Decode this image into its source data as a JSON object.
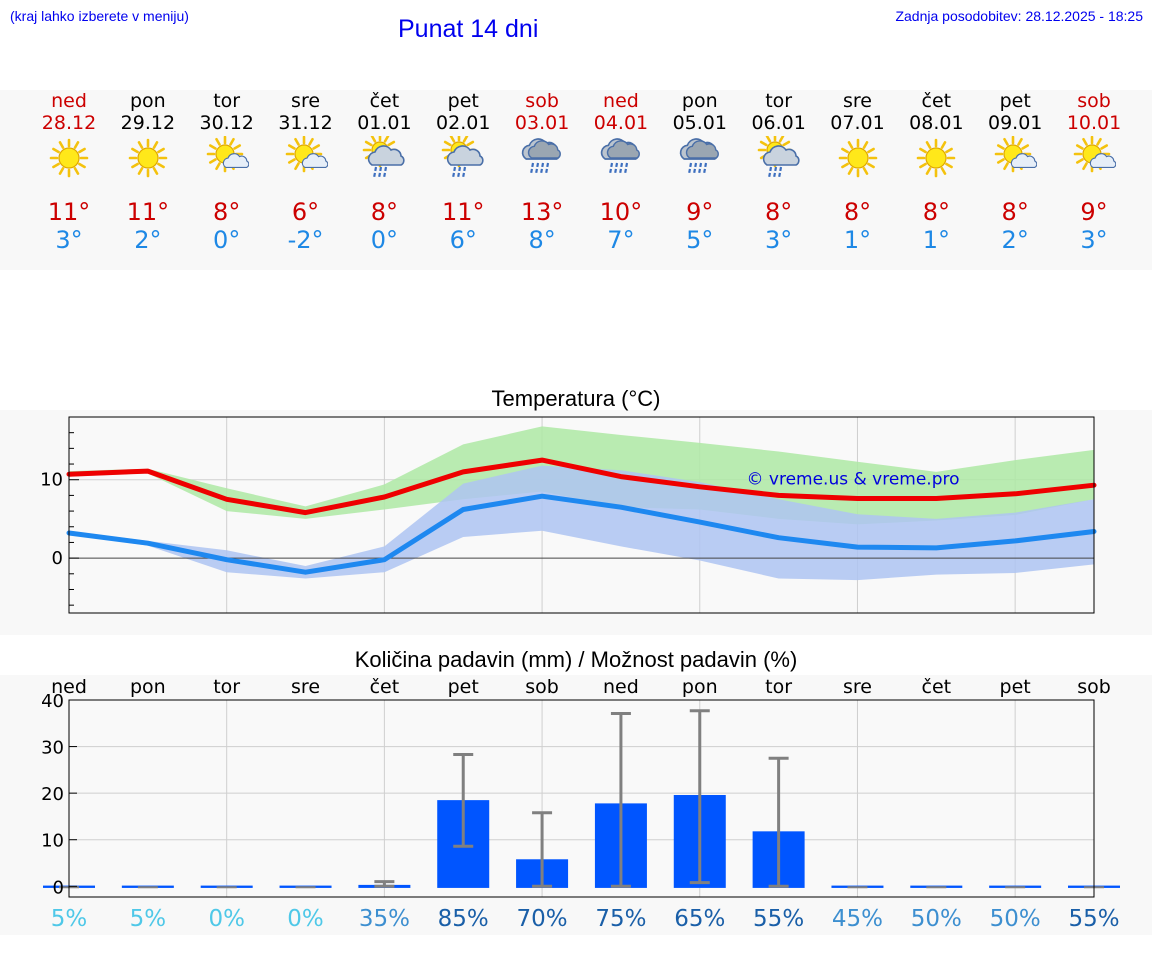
{
  "header": {
    "note": "(kraj lahko izberete v meniju)",
    "title": "Punat 14 dni",
    "updated": "Zadnja posodobitev: 28.12.2025 - 18:25"
  },
  "days": [
    {
      "name": "ned",
      "date": "28.12",
      "icon": "sun-icon",
      "tmax": "11°",
      "tmin": "3°",
      "weekend": true
    },
    {
      "name": "pon",
      "date": "29.12",
      "icon": "sun-icon",
      "tmax": "11°",
      "tmin": "2°",
      "weekend": false
    },
    {
      "name": "tor",
      "date": "30.12",
      "icon": "sun-cloud-icon",
      "tmax": "8°",
      "tmin": "0°",
      "weekend": false
    },
    {
      "name": "sre",
      "date": "31.12",
      "icon": "sun-cloud-icon",
      "tmax": "6°",
      "tmin": "-2°",
      "weekend": false
    },
    {
      "name": "čet",
      "date": "01.01",
      "icon": "sun-cloud-rain-icon",
      "tmax": "8°",
      "tmin": "0°",
      "weekend": false
    },
    {
      "name": "pet",
      "date": "02.01",
      "icon": "sun-cloud-rain-icon",
      "tmax": "11°",
      "tmin": "6°",
      "weekend": false
    },
    {
      "name": "sob",
      "date": "03.01",
      "icon": "cloud-rain-icon",
      "tmax": "13°",
      "tmin": "8°",
      "weekend": true
    },
    {
      "name": "ned",
      "date": "04.01",
      "icon": "cloud-rain-icon",
      "tmax": "10°",
      "tmin": "7°",
      "weekend": true
    },
    {
      "name": "pon",
      "date": "05.01",
      "icon": "cloud-rain-icon",
      "tmax": "9°",
      "tmin": "5°",
      "weekend": false
    },
    {
      "name": "tor",
      "date": "06.01",
      "icon": "sun-cloud-rain-icon",
      "tmax": "8°",
      "tmin": "3°",
      "weekend": false
    },
    {
      "name": "sre",
      "date": "07.01",
      "icon": "sun-icon",
      "tmax": "8°",
      "tmin": "1°",
      "weekend": false
    },
    {
      "name": "čet",
      "date": "08.01",
      "icon": "sun-icon",
      "tmax": "8°",
      "tmin": "1°",
      "weekend": false
    },
    {
      "name": "pet",
      "date": "09.01",
      "icon": "sun-cloud-icon",
      "tmax": "8°",
      "tmin": "2°",
      "weekend": false
    },
    {
      "name": "sob",
      "date": "10.01",
      "icon": "sun-cloud-icon",
      "tmax": "9°",
      "tmin": "3°",
      "weekend": true
    }
  ],
  "colors": {
    "max_line": "#ee0000",
    "min_line": "#1e88f0",
    "max_band": "#aee9a4",
    "min_band": "#aec4f2",
    "overlap_band": "#78c4a0",
    "bar": "#0055ff",
    "whisker": "#808080",
    "weekend": "#cc0000",
    "watermark": "#0000dd"
  },
  "chart_data": [
    {
      "type": "line",
      "title": "Temperatura (°C)",
      "watermark": "© vreme.us & vreme.pro",
      "x": [
        0,
        1,
        2,
        3,
        4,
        5,
        6,
        7,
        8,
        9,
        10,
        11,
        12,
        13
      ],
      "ylim": [
        -7,
        18
      ],
      "yticks": [
        0,
        10
      ],
      "ytick_labels": [
        "0",
        "10"
      ],
      "grid": true,
      "series": [
        {
          "name": "max",
          "values": [
            10.7,
            11.1,
            7.5,
            5.8,
            7.8,
            11.0,
            12.5,
            10.4,
            9.1,
            8.0,
            7.6,
            7.6,
            8.2,
            9.3
          ]
        },
        {
          "name": "min",
          "values": [
            3.2,
            1.9,
            -0.2,
            -1.8,
            -0.2,
            6.2,
            7.9,
            6.5,
            4.6,
            2.6,
            1.4,
            1.3,
            2.2,
            3.4
          ]
        }
      ],
      "bands": [
        {
          "name": "max_range",
          "low": [
            10.4,
            10.8,
            6.0,
            5.0,
            6.2,
            7.5,
            8.5,
            6.5,
            6.2,
            5.0,
            4.3,
            4.8,
            5.5,
            7.5
          ],
          "high": [
            11.1,
            11.4,
            8.9,
            6.6,
            9.4,
            14.5,
            16.8,
            15.7,
            14.7,
            13.6,
            12.3,
            11.0,
            12.5,
            13.8
          ]
        },
        {
          "name": "min_range",
          "low": [
            3.0,
            1.6,
            -1.8,
            -2.6,
            -1.8,
            2.7,
            3.5,
            1.5,
            -0.3,
            -2.6,
            -2.8,
            -2.1,
            -1.9,
            -0.8
          ],
          "high": [
            3.5,
            2.2,
            1.0,
            -1.0,
            1.5,
            9.5,
            11.8,
            11.2,
            9.7,
            7.5,
            5.6,
            5.0,
            5.8,
            7.5
          ]
        }
      ]
    },
    {
      "type": "bar",
      "title": "Količina padavin (mm) / Možnost padavin (%)",
      "categories": [
        "ned",
        "pon",
        "tor",
        "sre",
        "čet",
        "pet",
        "sob",
        "ned",
        "pon",
        "tor",
        "sre",
        "čet",
        "pet",
        "sob"
      ],
      "values": [
        0,
        0,
        0,
        0,
        0.3,
        18.5,
        5.8,
        17.8,
        19.6,
        11.8,
        0,
        0,
        0,
        0
      ],
      "error_low": [
        0,
        0,
        0,
        0,
        0,
        8.6,
        0,
        0,
        0.8,
        0,
        0,
        0,
        0,
        0
      ],
      "error_high": [
        0,
        0,
        0,
        0,
        1.0,
        28.3,
        15.8,
        37.1,
        37.7,
        27.5,
        0,
        0,
        0,
        0
      ],
      "ylim": [
        -2.3,
        40
      ],
      "yticks": [
        0,
        10,
        20,
        30,
        40
      ],
      "ytick_labels": [
        "0",
        "10",
        "20",
        "30",
        "40"
      ],
      "grid": true,
      "probability": [
        "5%",
        "5%",
        "0%",
        "0%",
        "35%",
        "85%",
        "70%",
        "75%",
        "65%",
        "55%",
        "45%",
        "50%",
        "50%",
        "55%"
      ],
      "probability_values": [
        5,
        5,
        0,
        0,
        35,
        85,
        70,
        75,
        65,
        55,
        45,
        50,
        50,
        55
      ]
    }
  ]
}
